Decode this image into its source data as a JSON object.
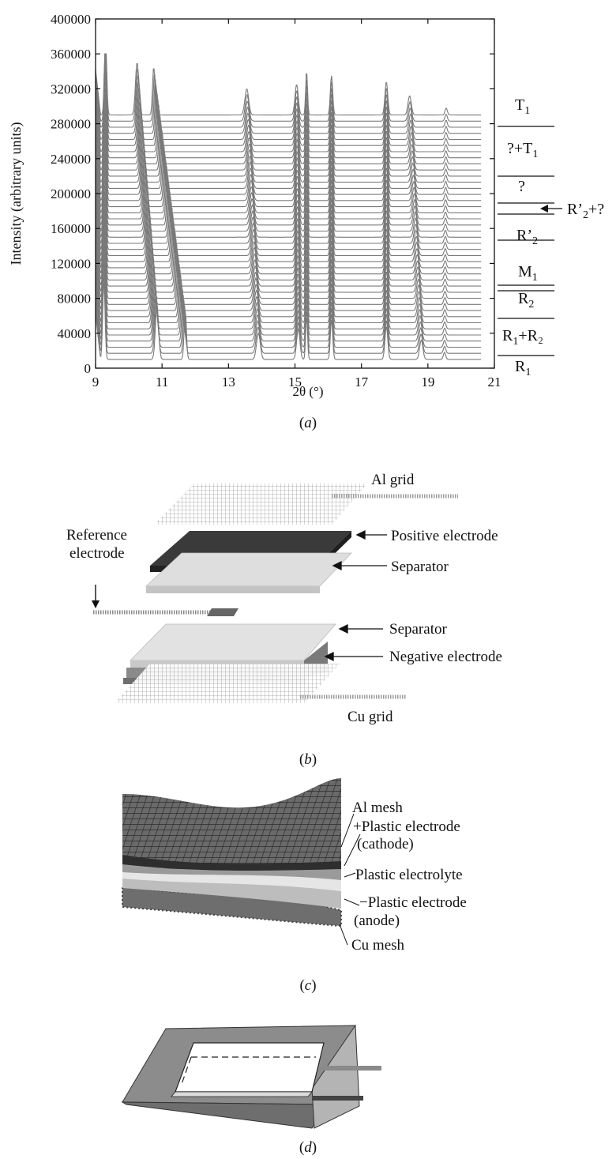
{
  "chart_data": {
    "type": "line",
    "xlabel": "2θ (°)",
    "ylabel": "Intensity (arbitrary units)",
    "xlim": [
      9,
      21
    ],
    "ylim": [
      0,
      400000
    ],
    "x_ticks": [
      "9",
      "11",
      "13",
      "15",
      "17",
      "19",
      "21"
    ],
    "y_ticks": [
      "0",
      "40000",
      "80000",
      "120000",
      "160000",
      "200000",
      "240000",
      "280000",
      "320000",
      "360000",
      "400000"
    ],
    "grid": false,
    "x_end": 20.6,
    "stack": {
      "count": 41,
      "baseline_start": 10000,
      "baseline_step": 7000
    },
    "peaks_high": [
      9.3,
      10.25,
      10.75,
      13.55,
      15.05,
      15.35,
      16.1,
      17.75,
      18.45,
      19.55
    ],
    "peaks_low": [
      9.25,
      10.85,
      11.7,
      13.9,
      15.1,
      15.35,
      16.1,
      17.75,
      18.8,
      19.5
    ],
    "phase_regions": [
      {
        "label": "T",
        "sub": "1",
        "suffix": ""
      },
      {
        "label": "?+T",
        "sub": "1",
        "suffix": ""
      },
      {
        "label": "?",
        "sub": "",
        "suffix": ""
      },
      {
        "label": "R’",
        "sub": "2",
        "suffix": "+?"
      },
      {
        "label": "R’",
        "sub": "2",
        "suffix": ""
      },
      {
        "label": "M",
        "sub": "1",
        "suffix": ""
      },
      {
        "label": "R",
        "sub": "2",
        "suffix": ""
      },
      {
        "label": "R",
        "sub": "1",
        "suffix": "+R₂"
      },
      {
        "label": "R",
        "sub": "1",
        "suffix": ""
      }
    ]
  },
  "captions": {
    "a": "a",
    "b": "b",
    "c": "c",
    "d": "d"
  },
  "diagram_b": {
    "labels": {
      "al_grid": "Al grid",
      "positive_electrode": "Positive electrode",
      "separator_top": "Separator",
      "reference_line1": "Reference",
      "reference_line2": "electrode",
      "separator_bottom": "Separator",
      "negative_electrode": "Negative electrode",
      "cu_grid": "Cu grid"
    }
  },
  "diagram_c": {
    "labels": {
      "al_mesh": "Al mesh",
      "plus_electrode": "+Plastic electrode",
      "cathode": "(cathode)",
      "electrolyte": "Plastic electrolyte",
      "minus_electrode": "−Plastic electrode",
      "anode": "(anode)",
      "cu_mesh": "Cu mesh"
    }
  },
  "colors": {
    "trace": "#7a7a7a",
    "dark_layer": "#444444",
    "mid_layer": "#888888",
    "light_layer": "#dcdcdc"
  }
}
